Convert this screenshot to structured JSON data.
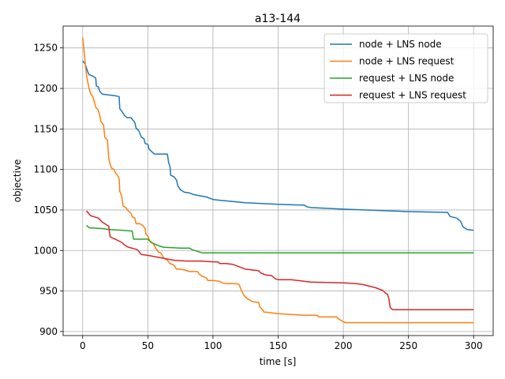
{
  "chart_data": {
    "type": "line",
    "title": "a13-144",
    "xlabel": "time [s]",
    "ylabel": "objective",
    "xlim": [
      -15,
      315
    ],
    "ylim": [
      895,
      1277
    ],
    "xticks": [
      0,
      50,
      100,
      150,
      200,
      250,
      300
    ],
    "yticks": [
      900,
      950,
      1000,
      1050,
      1100,
      1150,
      1200,
      1250
    ],
    "grid": true,
    "legend": "top-right",
    "series": [
      {
        "name": "node + LNS node",
        "color": "#1f77b4",
        "points": [
          [
            0,
            1234
          ],
          [
            2,
            1230
          ],
          [
            3,
            1225
          ],
          [
            4,
            1220
          ],
          [
            5,
            1217
          ],
          [
            8,
            1215
          ],
          [
            10,
            1213
          ],
          [
            10.5,
            1203
          ],
          [
            12,
            1202
          ],
          [
            13,
            1197
          ],
          [
            15,
            1193
          ],
          [
            20,
            1192
          ],
          [
            25,
            1191
          ],
          [
            28,
            1190
          ],
          [
            28.5,
            1175
          ],
          [
            30,
            1172
          ],
          [
            32,
            1167
          ],
          [
            34,
            1164
          ],
          [
            37,
            1164
          ],
          [
            38,
            1162
          ],
          [
            40,
            1158
          ],
          [
            41,
            1151
          ],
          [
            43,
            1148
          ],
          [
            45,
            1140
          ],
          [
            47,
            1138
          ],
          [
            48,
            1132
          ],
          [
            50,
            1131
          ],
          [
            51,
            1125
          ],
          [
            53,
            1122
          ],
          [
            55,
            1119
          ],
          [
            60,
            1119
          ],
          [
            65,
            1119
          ],
          [
            66,
            1108
          ],
          [
            67,
            1104
          ],
          [
            67.5,
            1093
          ],
          [
            70,
            1091
          ],
          [
            72,
            1087
          ],
          [
            73,
            1080
          ],
          [
            75,
            1075
          ],
          [
            78,
            1072
          ],
          [
            82,
            1071
          ],
          [
            85,
            1069
          ],
          [
            95,
            1066
          ],
          [
            100,
            1063
          ],
          [
            105,
            1062
          ],
          [
            125,
            1059
          ],
          [
            150,
            1057
          ],
          [
            170,
            1056
          ],
          [
            172,
            1054
          ],
          [
            175,
            1053
          ],
          [
            200,
            1051
          ],
          [
            250,
            1048
          ],
          [
            280,
            1047
          ],
          [
            282,
            1042
          ],
          [
            287,
            1040
          ],
          [
            290,
            1036
          ],
          [
            292,
            1029
          ],
          [
            295,
            1026
          ],
          [
            300,
            1025
          ]
        ]
      },
      {
        "name": "node + LNS request",
        "color": "#ff7f0e",
        "points": [
          [
            0,
            1263
          ],
          [
            1,
            1248
          ],
          [
            2,
            1230
          ],
          [
            3,
            1216
          ],
          [
            4,
            1207
          ],
          [
            5,
            1200
          ],
          [
            6,
            1194
          ],
          [
            8,
            1189
          ],
          [
            9,
            1183
          ],
          [
            10,
            1177
          ],
          [
            12,
            1173
          ],
          [
            13,
            1168
          ],
          [
            14,
            1159
          ],
          [
            16,
            1155
          ],
          [
            17,
            1140
          ],
          [
            19,
            1136
          ],
          [
            20,
            1114
          ],
          [
            21,
            1107
          ],
          [
            22,
            1102
          ],
          [
            24,
            1100
          ],
          [
            25,
            1096
          ],
          [
            27,
            1092
          ],
          [
            28,
            1088
          ],
          [
            28.5,
            1073
          ],
          [
            30,
            1067
          ],
          [
            31,
            1055
          ],
          [
            33,
            1053
          ],
          [
            35,
            1049
          ],
          [
            37,
            1046
          ],
          [
            38,
            1042
          ],
          [
            40,
            1040
          ],
          [
            41,
            1033
          ],
          [
            44,
            1033
          ],
          [
            46,
            1031
          ],
          [
            48,
            1027
          ],
          [
            48.5,
            1020
          ],
          [
            50,
            1018
          ],
          [
            52,
            1010
          ],
          [
            54,
            1009
          ],
          [
            56,
            1003
          ],
          [
            58,
            998
          ],
          [
            60,
            997
          ],
          [
            62,
            991
          ],
          [
            65,
            988
          ],
          [
            67,
            984
          ],
          [
            70,
            982
          ],
          [
            72,
            977
          ],
          [
            75,
            977
          ],
          [
            78,
            976
          ],
          [
            80,
            975
          ],
          [
            82,
            974
          ],
          [
            88,
            974
          ],
          [
            90,
            970
          ],
          [
            92,
            968
          ],
          [
            95,
            966
          ],
          [
            96,
            963
          ],
          [
            100,
            963
          ],
          [
            105,
            962
          ],
          [
            107,
            960
          ],
          [
            110,
            959
          ],
          [
            118,
            959
          ],
          [
            120,
            958
          ],
          [
            122,
            950
          ],
          [
            124,
            944
          ],
          [
            126,
            941
          ],
          [
            128,
            939
          ],
          [
            130,
            937
          ],
          [
            135,
            936
          ],
          [
            136,
            930
          ],
          [
            138,
            927
          ],
          [
            139,
            924
          ],
          [
            140,
            924
          ],
          [
            145,
            923
          ],
          [
            150,
            922
          ],
          [
            160,
            921
          ],
          [
            170,
            920
          ],
          [
            180,
            920
          ],
          [
            181,
            918
          ],
          [
            190,
            918
          ],
          [
            195,
            918
          ],
          [
            196,
            916
          ],
          [
            198,
            914
          ],
          [
            200,
            912
          ],
          [
            202,
            911
          ],
          [
            250,
            911
          ],
          [
            300,
            911
          ]
        ]
      },
      {
        "name": "request + LNS node",
        "color": "#2ca02c",
        "points": [
          [
            3,
            1031
          ],
          [
            5,
            1028
          ],
          [
            15,
            1027
          ],
          [
            20,
            1026
          ],
          [
            30,
            1025
          ],
          [
            38,
            1024
          ],
          [
            39,
            1014
          ],
          [
            50,
            1014
          ],
          [
            52,
            1011
          ],
          [
            55,
            1008
          ],
          [
            58,
            1006
          ],
          [
            62,
            1004
          ],
          [
            75,
            1003
          ],
          [
            82,
            1003
          ],
          [
            84,
            1001
          ],
          [
            88,
            999
          ],
          [
            92,
            997
          ],
          [
            100,
            997
          ],
          [
            150,
            997
          ],
          [
            200,
            997
          ],
          [
            250,
            997
          ],
          [
            300,
            997
          ]
        ]
      },
      {
        "name": "request + LNS request",
        "color": "#d62728",
        "points": [
          [
            3,
            1049
          ],
          [
            5,
            1045
          ],
          [
            6,
            1043
          ],
          [
            10,
            1041
          ],
          [
            12,
            1040
          ],
          [
            15,
            1035
          ],
          [
            20,
            1030
          ],
          [
            21,
            1017
          ],
          [
            22,
            1016
          ],
          [
            25,
            1014
          ],
          [
            30,
            1010
          ],
          [
            32,
            1007
          ],
          [
            35,
            1004
          ],
          [
            40,
            1002
          ],
          [
            42,
            1001
          ],
          [
            45,
            995
          ],
          [
            50,
            994
          ],
          [
            60,
            991
          ],
          [
            70,
            988
          ],
          [
            80,
            987
          ],
          [
            90,
            987
          ],
          [
            100,
            986
          ],
          [
            104,
            986
          ],
          [
            105,
            984
          ],
          [
            110,
            984
          ],
          [
            115,
            983
          ],
          [
            120,
            980
          ],
          [
            125,
            977
          ],
          [
            130,
            976
          ],
          [
            135,
            975
          ],
          [
            137,
            972
          ],
          [
            140,
            970
          ],
          [
            145,
            969
          ],
          [
            148,
            965
          ],
          [
            150,
            964
          ],
          [
            160,
            964
          ],
          [
            165,
            963
          ],
          [
            170,
            962
          ],
          [
            175,
            961
          ],
          [
            200,
            960
          ],
          [
            210,
            959
          ],
          [
            215,
            958
          ],
          [
            220,
            956
          ],
          [
            225,
            954
          ],
          [
            228,
            952
          ],
          [
            230,
            951
          ],
          [
            232,
            948
          ],
          [
            234,
            946
          ],
          [
            235,
            940
          ],
          [
            236,
            930
          ],
          [
            237,
            928
          ],
          [
            238,
            927
          ],
          [
            250,
            927
          ],
          [
            300,
            927
          ]
        ]
      }
    ]
  }
}
